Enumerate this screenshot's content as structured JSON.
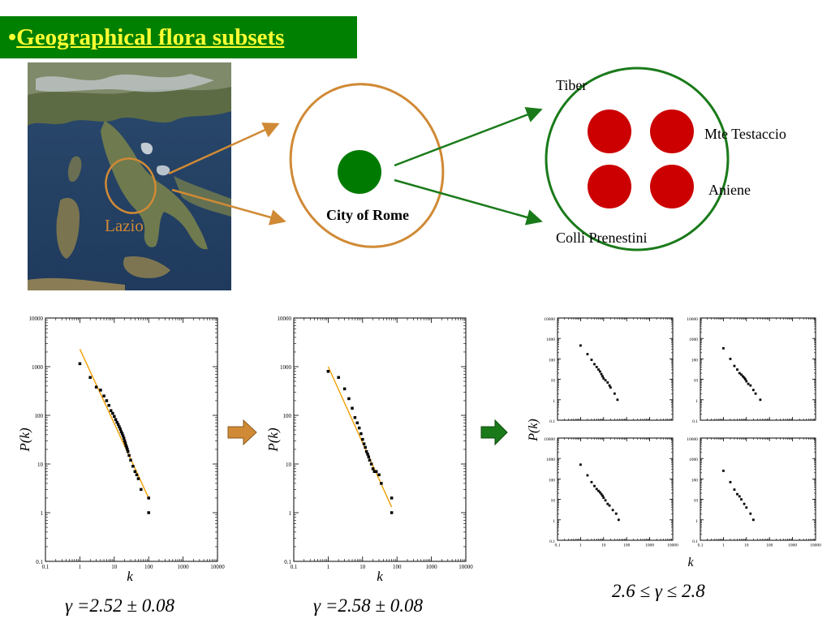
{
  "slide": {
    "bullet": "•",
    "title": "Geographical flora subsets"
  },
  "diagram": {
    "region_label": "Lazio",
    "city_label": "City of Rome",
    "subsets": [
      "Tiber",
      "Mte Testaccio",
      "Aniene",
      "Colli Prenestini"
    ],
    "colors": {
      "title_bg": "#008000",
      "title_text": "#ffff33",
      "orange": "#d08a35",
      "green": "#1a7a1a",
      "red": "#cc0000",
      "fit_line": "#f0a000"
    }
  },
  "arrows": {
    "first": "orange-block-arrow-icon",
    "second": "green-block-arrow-icon"
  },
  "chart_data": [
    {
      "type": "scatter",
      "name": "lazio",
      "xlabel": "k",
      "ylabel": "P(k)",
      "xscale": "log",
      "yscale": "log",
      "xlim": [
        0.1,
        10000
      ],
      "ylim": [
        0.1,
        10000
      ],
      "tick_labels": [
        "0.1",
        "1",
        "10",
        "100",
        "1000",
        "10000"
      ],
      "points": [
        [
          1,
          1150
        ],
        [
          2,
          600
        ],
        [
          3,
          380
        ],
        [
          4,
          330
        ],
        [
          5,
          250
        ],
        [
          6,
          200
        ],
        [
          7,
          160
        ],
        [
          8,
          125
        ],
        [
          9,
          110
        ],
        [
          10,
          95
        ],
        [
          11,
          82
        ],
        [
          12,
          72
        ],
        [
          13,
          65
        ],
        [
          14,
          58
        ],
        [
          15,
          52
        ],
        [
          16,
          46
        ],
        [
          17,
          42
        ],
        [
          18,
          38
        ],
        [
          19,
          34
        ],
        [
          20,
          30
        ],
        [
          21,
          27
        ],
        [
          22,
          24
        ],
        [
          23,
          22
        ],
        [
          24,
          20
        ],
        [
          25,
          18
        ],
        [
          27,
          15
        ],
        [
          30,
          12
        ],
        [
          35,
          9
        ],
        [
          40,
          7
        ],
        [
          45,
          6
        ],
        [
          50,
          5
        ],
        [
          60,
          3
        ],
        [
          100,
          2
        ],
        [
          100,
          1
        ]
      ],
      "fit": {
        "x": [
          1,
          100
        ],
        "y": [
          2300,
          2
        ]
      },
      "gamma_label": "γ =2.52 ± 0.08"
    },
    {
      "type": "scatter",
      "name": "city-of-rome",
      "xlabel": "k",
      "ylabel": "P(k)",
      "xscale": "log",
      "yscale": "log",
      "xlim": [
        0.1,
        10000
      ],
      "ylim": [
        0.1,
        10000
      ],
      "tick_labels": [
        "0.1",
        "1",
        "10",
        "100",
        "1000",
        "10000"
      ],
      "points": [
        [
          1,
          800
        ],
        [
          2,
          600
        ],
        [
          3,
          350
        ],
        [
          4,
          220
        ],
        [
          5,
          140
        ],
        [
          6,
          90
        ],
        [
          7,
          70
        ],
        [
          8,
          55
        ],
        [
          9,
          42
        ],
        [
          10,
          32
        ],
        [
          11,
          26
        ],
        [
          12,
          22
        ],
        [
          13,
          18
        ],
        [
          14,
          16
        ],
        [
          15,
          14
        ],
        [
          16,
          12
        ],
        [
          18,
          10
        ],
        [
          20,
          8
        ],
        [
          22,
          7
        ],
        [
          25,
          7
        ],
        [
          30,
          6
        ],
        [
          35,
          4
        ],
        [
          70,
          2
        ],
        [
          70,
          1
        ]
      ],
      "fit": {
        "x": [
          1,
          70
        ],
        "y": [
          1000,
          1.3
        ]
      },
      "gamma_label": "γ =2.58 ± 0.08"
    },
    {
      "type": "scatter",
      "name": "subset-top-left",
      "xscale": "log",
      "yscale": "log",
      "xlim": [
        0.1,
        10000
      ],
      "ylim": [
        0.1,
        10000
      ],
      "points": [
        [
          1,
          450
        ],
        [
          2,
          170
        ],
        [
          3,
          90
        ],
        [
          4,
          55
        ],
        [
          5,
          40
        ],
        [
          6,
          30
        ],
        [
          7,
          24
        ],
        [
          8,
          18
        ],
        [
          9,
          14
        ],
        [
          10,
          11
        ],
        [
          12,
          9
        ],
        [
          15,
          7
        ],
        [
          18,
          5
        ],
        [
          20,
          4
        ],
        [
          30,
          2
        ],
        [
          40,
          1
        ]
      ]
    },
    {
      "type": "scatter",
      "name": "subset-top-right",
      "xscale": "log",
      "yscale": "log",
      "xlim": [
        0.1,
        10000
      ],
      "ylim": [
        0.1,
        10000
      ],
      "points": [
        [
          1,
          330
        ],
        [
          2,
          100
        ],
        [
          3,
          45
        ],
        [
          4,
          30
        ],
        [
          5,
          20
        ],
        [
          6,
          17
        ],
        [
          7,
          14
        ],
        [
          8,
          12
        ],
        [
          9,
          10
        ],
        [
          10,
          8
        ],
        [
          12,
          6
        ],
        [
          15,
          5
        ],
        [
          20,
          3
        ],
        [
          25,
          2
        ],
        [
          40,
          1
        ]
      ]
    },
    {
      "type": "scatter",
      "name": "subset-bottom-left",
      "xscale": "log",
      "yscale": "log",
      "xlim": [
        0.1,
        10000
      ],
      "ylim": [
        0.1,
        10000
      ],
      "xlabel": "k",
      "tick_labels": [
        "0.1",
        "1",
        "10",
        "100",
        "1000",
        "10000"
      ],
      "points": [
        [
          1,
          500
        ],
        [
          2,
          150
        ],
        [
          3,
          70
        ],
        [
          4,
          45
        ],
        [
          5,
          32
        ],
        [
          6,
          26
        ],
        [
          7,
          22
        ],
        [
          8,
          18
        ],
        [
          9,
          15
        ],
        [
          10,
          12
        ],
        [
          12,
          9
        ],
        [
          15,
          6
        ],
        [
          18,
          5
        ],
        [
          25,
          3
        ],
        [
          35,
          2
        ],
        [
          45,
          1
        ]
      ]
    },
    {
      "type": "scatter",
      "name": "subset-bottom-right",
      "xscale": "log",
      "yscale": "log",
      "xlim": [
        0.1,
        10000
      ],
      "ylim": [
        0.1,
        10000
      ],
      "points": [
        [
          1,
          250
        ],
        [
          2,
          70
        ],
        [
          3,
          30
        ],
        [
          4,
          18
        ],
        [
          5,
          14
        ],
        [
          6,
          10
        ],
        [
          8,
          6
        ],
        [
          10,
          4
        ],
        [
          15,
          2
        ],
        [
          20,
          1
        ]
      ]
    }
  ],
  "subsets_chart": {
    "ylabel": "P(k)",
    "gamma_label": "2.6 ≤ γ ≤ 2.8"
  }
}
